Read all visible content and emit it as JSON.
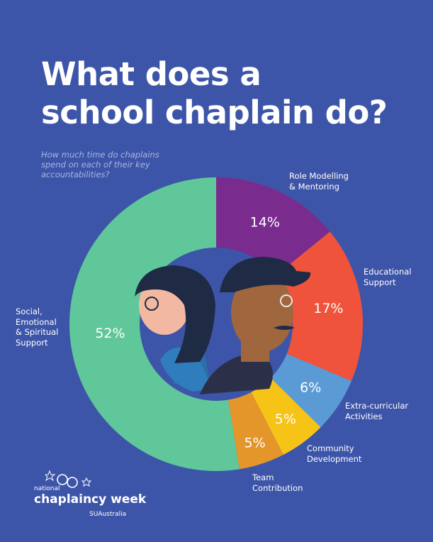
{
  "title_lines": [
    "What does a",
    "school chaplain do?"
  ],
  "subtitle_lines": [
    "How much time do chaplains",
    "spend on each of their key",
    "accountabilities?"
  ],
  "colors": {
    "background": "#3d55a8",
    "hole": "#3d55a8"
  },
  "chart_data": {
    "type": "pie",
    "slices": [
      {
        "label_lines": [
          "Role Modelling",
          "& Mentoring"
        ],
        "value": 14,
        "value_label": "14%",
        "color": "#7a2b8e"
      },
      {
        "label_lines": [
          "Educational",
          "Support"
        ],
        "value": 17,
        "value_label": "17%",
        "color": "#f0533b"
      },
      {
        "label_lines": [
          "Extra-curricular",
          "Activities"
        ],
        "value": 6,
        "value_label": "6%",
        "color": "#5b9bd5"
      },
      {
        "label_lines": [
          "Community",
          "Development"
        ],
        "value": 5,
        "value_label": "5%",
        "color": "#f6c417"
      },
      {
        "label_lines": [
          "Team",
          "Contribution"
        ],
        "value": 5,
        "value_label": "5%",
        "color": "#e5962b"
      },
      {
        "label_lines": [
          "Social,",
          "Emotional",
          "& Spiritual",
          "Support"
        ],
        "value": 52,
        "value_label": "52%",
        "color": "#5fc79a"
      }
    ]
  },
  "logo": {
    "small": "national",
    "main": "chaplaincy week",
    "brand": "SUAustralia"
  }
}
